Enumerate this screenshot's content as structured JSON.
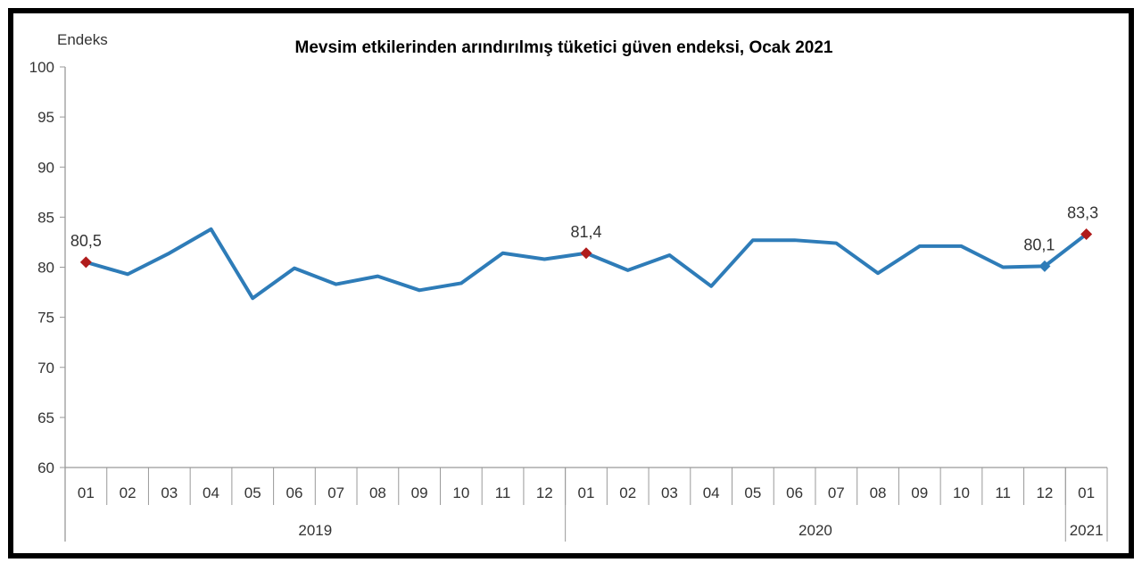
{
  "chart_data": {
    "type": "line",
    "title": "Mevsim etkilerinden arındırılmış tüketici güven endeksi, Ocak 2021",
    "ylabel": "Endeks",
    "xlabel": "",
    "ylim": [
      60,
      100
    ],
    "yticks": [
      "60",
      "65",
      "70",
      "75",
      "80",
      "85",
      "90",
      "95",
      "100"
    ],
    "categories": [
      "01",
      "02",
      "03",
      "04",
      "05",
      "06",
      "07",
      "08",
      "09",
      "10",
      "11",
      "12",
      "01",
      "02",
      "03",
      "04",
      "05",
      "06",
      "07",
      "08",
      "09",
      "10",
      "11",
      "12",
      "01"
    ],
    "years": [
      {
        "label": "2019",
        "count": 12
      },
      {
        "label": "2020",
        "count": 12
      },
      {
        "label": "2021",
        "count": 1
      }
    ],
    "values": [
      80.5,
      79.3,
      81.4,
      83.8,
      76.9,
      79.9,
      78.3,
      79.1,
      77.7,
      78.4,
      81.4,
      80.8,
      81.4,
      79.7,
      81.2,
      78.1,
      82.7,
      82.7,
      82.4,
      79.4,
      82.1,
      82.1,
      80.0,
      80.1,
      83.3
    ],
    "data_labels": [
      {
        "index": 0,
        "text": "80,5",
        "marker": "diamond-red"
      },
      {
        "index": 12,
        "text": "81,4",
        "marker": "diamond-red"
      },
      {
        "index": 23,
        "text": "80,1",
        "marker": "diamond-blue"
      },
      {
        "index": 24,
        "text": "83,3",
        "marker": "diamond-red"
      }
    ],
    "line_color": "#2e7cb8",
    "marker_red": "#b01c1c",
    "grid": false,
    "legend": "none"
  }
}
